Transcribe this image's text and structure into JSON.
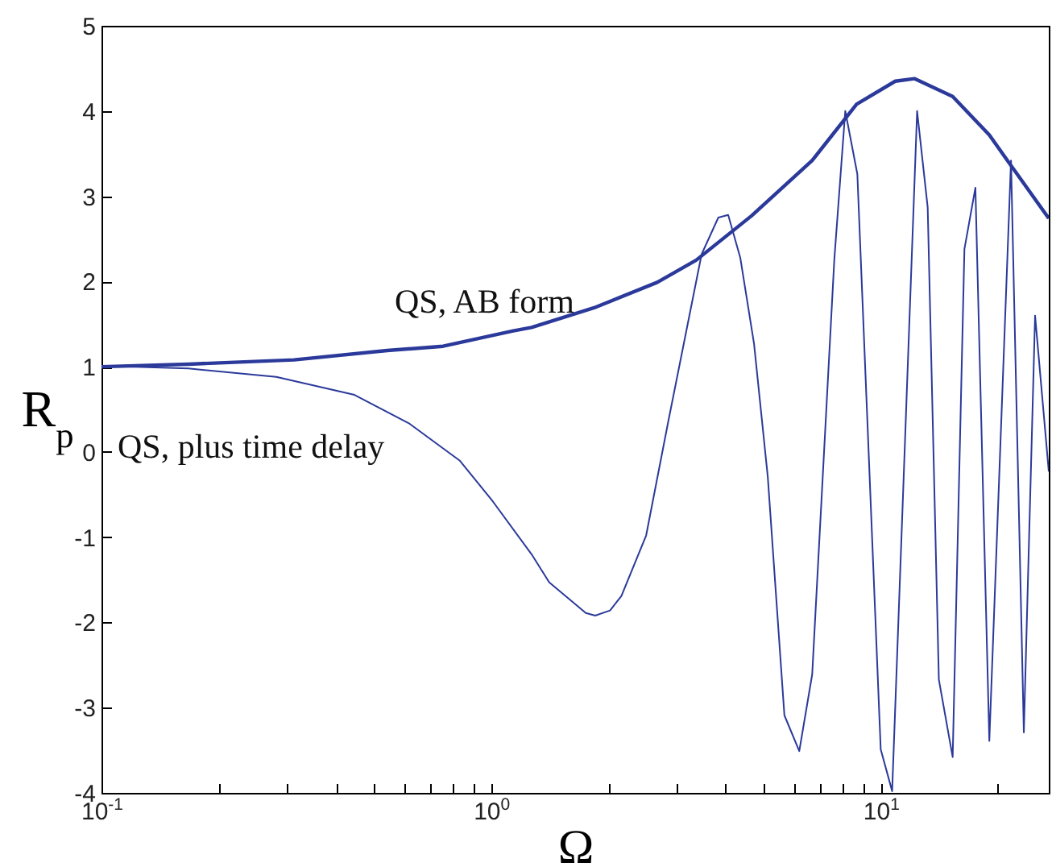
{
  "chart_data": {
    "type": "line",
    "xlabel": "Ω",
    "ylabel": "R$_{p}$",
    "log": "x",
    "grid": false,
    "marker": "none",
    "line_style": "solid",
    "xlim": [
      0.1,
      27
    ],
    "ylim": [
      -4,
      5
    ],
    "xticks": [
      {
        "value": 0.1,
        "label": "10$^{-1}$"
      },
      {
        "value": 0.2,
        "label": null
      },
      {
        "value": 0.3,
        "label": null
      },
      {
        "value": 0.4,
        "label": null
      },
      {
        "value": 0.5,
        "label": null
      },
      {
        "value": 0.6,
        "label": null
      },
      {
        "value": 0.7,
        "label": null
      },
      {
        "value": 0.8,
        "label": null
      },
      {
        "value": 0.9,
        "label": null
      },
      {
        "value": 1,
        "label": "10$^{0}$"
      },
      {
        "value": 2,
        "label": null
      },
      {
        "value": 3,
        "label": null
      },
      {
        "value": 4,
        "label": null
      },
      {
        "value": 5,
        "label": null
      },
      {
        "value": 6,
        "label": null
      },
      {
        "value": 7,
        "label": null
      },
      {
        "value": 8,
        "label": null
      },
      {
        "value": 9,
        "label": null
      },
      {
        "value": 10,
        "label": "10$^{1}$"
      },
      {
        "value": 20,
        "label": null
      }
    ],
    "yticks": [
      -4,
      -3,
      -2,
      -1,
      0,
      1,
      2,
      3,
      4,
      5
    ],
    "series": [
      {
        "name": "QS, AB form",
        "color": "#2b3a9a",
        "x": [
          0.1,
          0.167,
          0.312,
          0.541,
          0.753,
          1.14,
          1.27,
          1.86,
          2.67,
          3.36,
          4.66,
          6.67,
          8.67,
          10.9,
          12.2,
          15.3,
          19.0,
          21.6,
          27.0
        ],
        "values": [
          1.0,
          1.03,
          1.08,
          1.19,
          1.24,
          1.42,
          1.46,
          1.7,
          1.99,
          2.25,
          2.77,
          3.42,
          4.08,
          4.35,
          4.38,
          4.17,
          3.72,
          3.36,
          2.74
        ]
      },
      {
        "name": "QS, plus time delay",
        "color": "#2b3a9a",
        "x": [
          0.1,
          0.167,
          0.281,
          0.446,
          0.618,
          0.83,
          1.01,
          1.27,
          1.41,
          1.75,
          1.85,
          2.02,
          2.16,
          2.5,
          2.85,
          3.47,
          3.83,
          4.06,
          4.36,
          4.73,
          5.13,
          5.66,
          6.18,
          6.67,
          7.6,
          8.11,
          8.71,
          10.0,
          10.7,
          12.4,
          13.2,
          14.1,
          15.3,
          16.4,
          17.5,
          19.0,
          21.6,
          23.3,
          24.9,
          27.0
        ],
        "values": [
          1.01,
          0.98,
          0.88,
          0.67,
          0.33,
          -0.1,
          -0.58,
          -1.2,
          -1.53,
          -1.89,
          -1.92,
          -1.86,
          -1.69,
          -0.98,
          0.36,
          2.32,
          2.75,
          2.78,
          2.28,
          1.27,
          -0.29,
          -3.09,
          -3.51,
          -2.61,
          2.25,
          4.0,
          3.26,
          -3.49,
          -3.98,
          4.0,
          2.87,
          -2.67,
          -3.58,
          2.38,
          3.1,
          -3.39,
          3.42,
          -3.29,
          1.6,
          -0.23
        ]
      }
    ]
  }
}
